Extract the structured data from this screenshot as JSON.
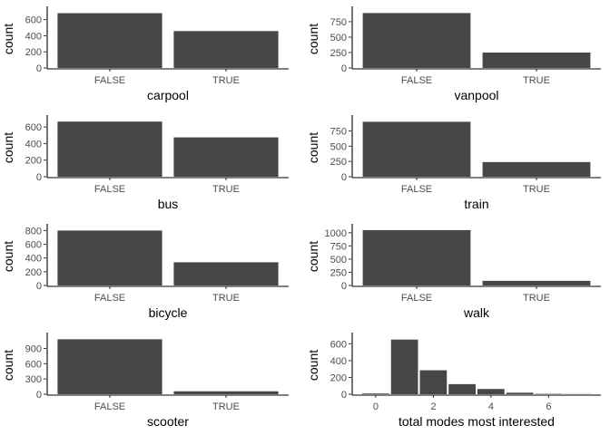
{
  "colors": {
    "bar": "#474747",
    "axis": "#000000",
    "tick_text": "#4d4d4d"
  },
  "chart_data": [
    {
      "type": "bar",
      "xlabel": "carpool",
      "ylabel": "count",
      "categories": [
        "FALSE",
        "TRUE"
      ],
      "values": [
        680,
        458
      ],
      "ylim": [
        0,
        720
      ],
      "yticks": [
        0,
        200,
        400,
        600
      ]
    },
    {
      "type": "bar",
      "xlabel": "vanpool",
      "ylabel": "count",
      "categories": [
        "FALSE",
        "TRUE"
      ],
      "values": [
        890,
        250
      ],
      "ylim": [
        0,
        940
      ],
      "yticks": [
        0,
        250,
        500,
        750
      ]
    },
    {
      "type": "bar",
      "xlabel": "bus",
      "ylabel": "count",
      "categories": [
        "FALSE",
        "TRUE"
      ],
      "values": [
        665,
        475
      ],
      "ylim": [
        0,
        700
      ],
      "yticks": [
        0,
        200,
        400,
        600
      ]
    },
    {
      "type": "bar",
      "xlabel": "train",
      "ylabel": "count",
      "categories": [
        "FALSE",
        "TRUE"
      ],
      "values": [
        900,
        240
      ],
      "ylim": [
        0,
        950
      ],
      "yticks": [
        0,
        250,
        500,
        750
      ]
    },
    {
      "type": "bar",
      "xlabel": "bicycle",
      "ylabel": "count",
      "categories": [
        "FALSE",
        "TRUE"
      ],
      "values": [
        800,
        338
      ],
      "ylim": [
        0,
        845
      ],
      "yticks": [
        0,
        200,
        400,
        600,
        800
      ]
    },
    {
      "type": "bar",
      "xlabel": "walk",
      "ylabel": "count",
      "categories": [
        "FALSE",
        "TRUE"
      ],
      "values": [
        1050,
        88
      ],
      "ylim": [
        0,
        1100
      ],
      "yticks": [
        0,
        250,
        500,
        750,
        1000
      ]
    },
    {
      "type": "bar",
      "xlabel": "scooter",
      "ylabel": "count",
      "categories": [
        "FALSE",
        "TRUE"
      ],
      "values": [
        1080,
        58
      ],
      "ylim": [
        0,
        1140
      ],
      "yticks": [
        0,
        300,
        600,
        900
      ]
    },
    {
      "type": "histogram",
      "xlabel": "total modes most interested",
      "ylabel": "count",
      "x": [
        0,
        1,
        2,
        3,
        4,
        5,
        6,
        7
      ],
      "values": [
        8,
        650,
        285,
        120,
        62,
        18,
        4,
        2
      ],
      "xlim": [
        -0.5,
        7.5
      ],
      "xticks": [
        0,
        2,
        4,
        6
      ],
      "ylim": [
        0,
        690
      ],
      "yticks": [
        0,
        200,
        400,
        600
      ]
    }
  ]
}
